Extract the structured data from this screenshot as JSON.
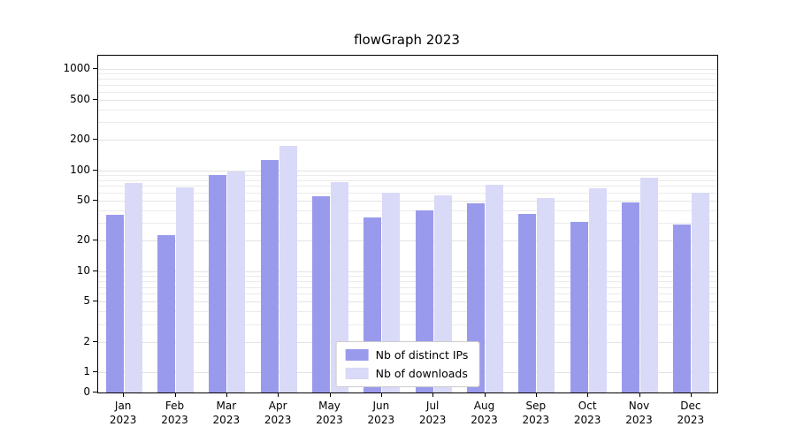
{
  "title": "flowGraph 2023",
  "colors": {
    "ips": "#9a9aec",
    "downloads": "#d9d9f8",
    "grid": "#ebebeb",
    "axis": "#000000",
    "legend_border": "#cccccc"
  },
  "axes": {
    "yticks": [
      0,
      1,
      2,
      5,
      10,
      20,
      50,
      100,
      200,
      500,
      1000
    ],
    "yscale": "symlog"
  },
  "legend": {
    "items": [
      {
        "label": "Nb of distinct IPs",
        "key": "ips"
      },
      {
        "label": "Nb of downloads",
        "key": "downloads"
      }
    ]
  },
  "chart_data": {
    "type": "bar",
    "title": "flowGraph 2023",
    "categories": [
      "Jan 2023",
      "Feb 2023",
      "Mar 2023",
      "Apr 2023",
      "May 2023",
      "Jun 2023",
      "Jul 2023",
      "Aug 2023",
      "Sep 2023",
      "Oct 2023",
      "Nov 2023",
      "Dec 2023"
    ],
    "series": [
      {
        "name": "Nb of distinct IPs",
        "color": "#9a9aec",
        "values": [
          36,
          23,
          90,
          125,
          55,
          34,
          40,
          47,
          37,
          31,
          48,
          29
        ]
      },
      {
        "name": "Nb of downloads",
        "color": "#d9d9f8",
        "values": [
          75,
          68,
          98,
          175,
          77,
          60,
          56,
          72,
          53,
          66,
          85,
          60
        ]
      }
    ],
    "xlabel": "",
    "ylabel": "",
    "ylim": [
      0,
      1000
    ],
    "yticks": [
      0,
      1,
      2,
      5,
      10,
      20,
      50,
      100,
      200,
      500,
      1000
    ],
    "yscale": "symlog",
    "grid": true,
    "legend_position": "lower center"
  }
}
